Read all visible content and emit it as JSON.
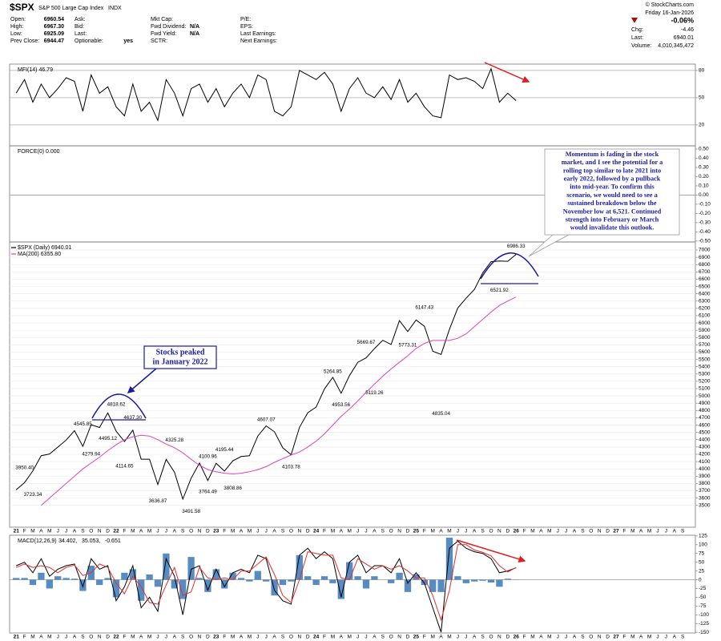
{
  "header": {
    "symbol": "$SPX",
    "name": "S&P 500 Large Cap Index",
    "exchange": "INDX",
    "columns": [
      [
        {
          "label": "Open:",
          "value": "6960.54"
        },
        {
          "label": "High:",
          "value": "6967.30"
        },
        {
          "label": "Low:",
          "value": "6925.09"
        },
        {
          "label": "Prev Close:",
          "value": "6944.47"
        }
      ],
      [
        {
          "label": "Ask:"
        },
        {
          "label": "Bid:"
        },
        {
          "label": "Last:"
        },
        {
          "label": "Optionable:",
          "value": "yes"
        }
      ],
      [
        {
          "label": "Mkt Cap:"
        },
        {
          "label": "Fwd Dividend:",
          "value": "N/A"
        },
        {
          "label": "Fwd Yield:",
          "value": "N/A"
        },
        {
          "label": "SCTR:"
        }
      ],
      [
        {
          "label": "P/E:"
        },
        {
          "label": "EPS:"
        },
        {
          "label": "Last Earnings:"
        },
        {
          "label": "Next Earnings:"
        }
      ]
    ],
    "date": "Friday  16-Jan-2026",
    "change_pct": "-0.06%",
    "details": [
      {
        "label": "Chg:",
        "value": "-4.46"
      },
      {
        "label": "Last:",
        "value": "6940.01"
      },
      {
        "label": "Volume:",
        "value": "4,010,345,472"
      }
    ],
    "credit": "© StockCharts.com"
  },
  "time_axis": {
    "start": "2021-01",
    "labels": [
      "21",
      "F",
      "M",
      "A",
      "M",
      "J",
      "J",
      "A",
      "S",
      "O",
      "N",
      "D",
      "22",
      "F",
      "M",
      "A",
      "M",
      "J",
      "J",
      "A",
      "S",
      "O",
      "N",
      "D",
      "23",
      "F",
      "M",
      "A",
      "M",
      "J",
      "J",
      "A",
      "S",
      "O",
      "N",
      "D",
      "24",
      "F",
      "M",
      "A",
      "M",
      "J",
      "J",
      "A",
      "S",
      "O",
      "N",
      "D",
      "25",
      "F",
      "M",
      "A",
      "M",
      "J",
      "J",
      "A",
      "S",
      "O",
      "N",
      "D",
      "26",
      "F",
      "M",
      "A",
      "M",
      "J",
      "J",
      "A",
      "S",
      "O",
      "N",
      "D",
      "27",
      "F",
      "M",
      "A",
      "M",
      "J",
      "J",
      "A",
      "S"
    ]
  },
  "notes": [
    {
      "lines": [
        "Stocks peaked",
        "in January 2022"
      ]
    },
    {
      "lines": [
        "Momentum is fading in the stock",
        "market, and I see the potential for a",
        "rolling top similar to late 2021 into",
        "early 2022, followed by a pullback",
        "into mid-year. To confirm this",
        "scenario, we would need to see a",
        "sustained breakdown below the",
        "November low at 6,521. Continued",
        "strength into February or March",
        "would invalidate this outlook."
      ]
    }
  ],
  "chart_data": [
    {
      "type": "line",
      "title": "MFI(14) 46.79",
      "ylim": [
        -3,
        87
      ],
      "yticks": [
        20,
        50,
        80
      ],
      "grid": true,
      "grid_color": "#999999",
      "x": [
        "2021-01",
        "2021-02",
        "2021-03",
        "2021-04",
        "2021-05",
        "2021-06",
        "2021-07",
        "2021-08",
        "2021-09",
        "2021-10",
        "2021-11",
        "2021-12",
        "2022-01",
        "2022-02",
        "2022-03",
        "2022-04",
        "2022-05",
        "2022-06",
        "2022-07",
        "2022-08",
        "2022-09",
        "2022-10",
        "2022-11",
        "2022-12",
        "2023-01",
        "2023-02",
        "2023-03",
        "2023-04",
        "2023-05",
        "2023-06",
        "2023-07",
        "2023-08",
        "2023-09",
        "2023-10",
        "2023-11",
        "2023-12",
        "2024-01",
        "2024-02",
        "2024-03",
        "2024-04",
        "2024-05",
        "2024-06",
        "2024-07",
        "2024-08",
        "2024-09",
        "2024-10",
        "2024-11",
        "2024-12",
        "2025-01",
        "2025-02",
        "2025-03",
        "2025-04",
        "2025-05",
        "2025-06",
        "2025-07",
        "2025-08",
        "2025-09",
        "2025-10",
        "2025-11",
        "2025-12",
        "2026-01"
      ],
      "series": [
        {
          "color": "#000000",
          "values": [
            55,
            70,
            45,
            65,
            50,
            60,
            72,
            68,
            35,
            75,
            55,
            62,
            40,
            30,
            65,
            35,
            45,
            25,
            70,
            55,
            30,
            60,
            65,
            45,
            60,
            40,
            55,
            65,
            50,
            75,
            70,
            35,
            30,
            40,
            80,
            75,
            70,
            78,
            65,
            35,
            60,
            72,
            55,
            50,
            62,
            48,
            70,
            45,
            55,
            40,
            30,
            28,
            75,
            70,
            72,
            68,
            60,
            82,
            45,
            55,
            46.79
          ]
        }
      ]
    },
    {
      "type": "line",
      "title": "FORCE(0) 0.000",
      "ylim": [
        -0.51,
        0.535
      ],
      "zero_line": true,
      "yticks": [
        {
          "value": 0.5,
          "label": "0.50"
        },
        {
          "value": 0.4,
          "label": "0.40"
        },
        {
          "value": 0.3,
          "label": "0.30"
        },
        {
          "value": 0.2,
          "label": "0.20"
        },
        {
          "value": 0.1,
          "label": "0.10"
        },
        {
          "value": 0,
          "label": "0.00"
        },
        {
          "value": -0.1,
          "label": "-0.10"
        },
        {
          "value": -0.2,
          "label": "-0.20"
        },
        {
          "value": -0.3,
          "label": "-0.30"
        },
        {
          "value": -0.4,
          "label": "-0.40"
        },
        {
          "value": -0.5,
          "label": "-0.50"
        }
      ],
      "series": []
    },
    {
      "type": "line",
      "ylim": [
        3200,
        7110
      ],
      "grid": true,
      "grid_color": "#eeeeee",
      "yticks": [
        3500,
        3600,
        3700,
        3800,
        3900,
        4000,
        4100,
        4200,
        4300,
        4400,
        4500,
        4600,
        4700,
        4800,
        4900,
        5000,
        5100,
        5200,
        5300,
        5400,
        5500,
        5600,
        5700,
        5800,
        5900,
        6000,
        6100,
        6200,
        6300,
        6400,
        6500,
        6600,
        6700,
        6800,
        6900,
        7000
      ],
      "x": [
        "2021-01",
        "2021-02",
        "2021-03",
        "2021-04",
        "2021-05",
        "2021-06",
        "2021-07",
        "2021-08",
        "2021-09",
        "2021-10",
        "2021-11",
        "2021-12",
        "2022-01",
        "2022-02",
        "2022-03",
        "2022-04",
        "2022-05",
        "2022-06",
        "2022-07",
        "2022-08",
        "2022-09",
        "2022-10",
        "2022-11",
        "2022-12",
        "2023-01",
        "2023-02",
        "2023-03",
        "2023-04",
        "2023-05",
        "2023-06",
        "2023-07",
        "2023-08",
        "2023-09",
        "2023-10",
        "2023-11",
        "2023-12",
        "2024-01",
        "2024-02",
        "2024-03",
        "2024-04",
        "2024-05",
        "2024-06",
        "2024-07",
        "2024-08",
        "2024-09",
        "2024-10",
        "2024-11",
        "2024-12",
        "2025-01",
        "2025-02",
        "2025-03",
        "2025-04",
        "2025-05",
        "2025-06",
        "2025-07",
        "2025-08",
        "2025-09",
        "2025-10",
        "2025-11",
        "2025-12",
        "2026-01"
      ],
      "series": [
        {
          "name": "$SPX (Daily) 6940.01",
          "color": "#000000",
          "values": [
            3714,
            3811,
            3973,
            4181,
            4204,
            4298,
            4395,
            4523,
            4308,
            4605,
            4567,
            4766,
            4516,
            4374,
            4530,
            4132,
            4132,
            3785,
            4130,
            3955,
            3586,
            3872,
            4080,
            3840,
            4077,
            3970,
            4109,
            4169,
            4180,
            4450,
            4589,
            4508,
            4288,
            4194,
            4568,
            4770,
            4846,
            5096,
            5254,
            5036,
            5278,
            5460,
            5522,
            5648,
            5762,
            5705,
            6032,
            5882,
            6041,
            5955,
            5612,
            5569,
            5912,
            6205,
            6339,
            6460,
            6688,
            6840,
            6849,
            6845,
            6940.01
          ]
        },
        {
          "name": "MA(200) 6355.80",
          "color": "#e040c0",
          "values": [
            null,
            null,
            null,
            3500,
            3600,
            3700,
            3800,
            3900,
            4000,
            4080,
            4160,
            4250,
            4330,
            4400,
            4440,
            4460,
            4450,
            4400,
            4340,
            4290,
            4220,
            4130,
            4050,
            3990,
            3960,
            3940,
            3930,
            3940,
            3960,
            3990,
            4030,
            4090,
            4140,
            4190,
            4230,
            4300,
            4380,
            4480,
            4600,
            4720,
            4820,
            4930,
            5050,
            5160,
            5270,
            5370,
            5460,
            5550,
            5650,
            5720,
            5760,
            5760,
            5760,
            5790,
            5850,
            5950,
            6050,
            6150,
            6240,
            6300,
            6355.8
          ]
        }
      ],
      "annotations": [
        {
          "value": 3950.4,
          "label": "3950.40",
          "date": "2021-02",
          "pos": "above"
        },
        {
          "value": 3723.34,
          "label": "3723.34",
          "date": "2021-03",
          "pos": "below"
        },
        {
          "value": 4545.85,
          "label": "4545.85",
          "date": "2021-09",
          "pos": "above"
        },
        {
          "value": 4279.94,
          "label": "4279.94",
          "date": "2021-10",
          "pos": "below"
        },
        {
          "value": 4495.12,
          "label": "4495.12",
          "date": "2021-12",
          "pos": "below"
        },
        {
          "value": 4818.62,
          "label": "4818.62",
          "date": "2022-01",
          "pos": "above"
        },
        {
          "value": 4114.65,
          "label": "4114.65",
          "date": "2022-02",
          "pos": "below"
        },
        {
          "value": 4637.3,
          "label": "4637.30",
          "date": "2022-03",
          "pos": "above"
        },
        {
          "value": 3636.87,
          "label": "3636.87",
          "date": "2022-06",
          "pos": "below"
        },
        {
          "value": 4325.28,
          "label": "4325.28",
          "date": "2022-08",
          "pos": "above"
        },
        {
          "value": 3491.58,
          "label": "3491.58",
          "date": "2022-10",
          "pos": "below"
        },
        {
          "value": 4100.96,
          "label": "4100.96",
          "date": "2022-12",
          "pos": "above"
        },
        {
          "value": 3764.49,
          "label": "3764.49",
          "date": "2022-12",
          "pos": "below"
        },
        {
          "value": 4195.44,
          "label": "4195.44",
          "date": "2023-02",
          "pos": "above"
        },
        {
          "value": 3808.86,
          "label": "3808.86",
          "date": "2023-03",
          "pos": "below"
        },
        {
          "value": 4607.07,
          "label": "4607.07",
          "date": "2023-07",
          "pos": "above"
        },
        {
          "value": 4103.78,
          "label": "4103.78",
          "date": "2023-10",
          "pos": "below"
        },
        {
          "value": 5264.85,
          "label": "5264.85",
          "date": "2024-03",
          "pos": "above"
        },
        {
          "value": 4953.56,
          "label": "4953.56",
          "date": "2024-04",
          "pos": "below"
        },
        {
          "value": 5669.67,
          "label": "5669.67",
          "date": "2024-07",
          "pos": "above"
        },
        {
          "value": 5119.26,
          "label": "5119.26",
          "date": "2024-08",
          "pos": "below"
        },
        {
          "value": 5773.31,
          "label": "5773.31",
          "date": "2024-12",
          "pos": "below"
        },
        {
          "value": 6147.43,
          "label": "6147.43",
          "date": "2025-02",
          "pos": "above"
        },
        {
          "value": 4835.04,
          "label": "4835.04",
          "date": "2025-04",
          "pos": "below"
        },
        {
          "value": 6521.92,
          "label": "6521.92",
          "date": "2025-11",
          "pos": "below"
        },
        {
          "value": 6986.33,
          "label": "6986.33",
          "date": "2026-01",
          "pos": "above"
        }
      ]
    },
    {
      "type": "line",
      "title": "MACD(12,26,9)",
      "ylim": [
        -152,
        127
      ],
      "zero_line": true,
      "yticks": [
        125,
        100,
        75,
        50,
        25,
        0,
        -25,
        -50,
        -75,
        -100,
        -125,
        -150
      ],
      "legend_values": [
        {
          "label": "34.402,",
          "color": "#000000"
        },
        {
          "label": "35.053,",
          "color": "#e03030"
        },
        {
          "label": "-0.651",
          "color": "#3a78b8"
        }
      ],
      "x": [
        "2021-01",
        "2021-02",
        "2021-03",
        "2021-04",
        "2021-05",
        "2021-06",
        "2021-07",
        "2021-08",
        "2021-09",
        "2021-10",
        "2021-11",
        "2021-12",
        "2022-01",
        "2022-02",
        "2022-03",
        "2022-04",
        "2022-05",
        "2022-06",
        "2022-07",
        "2022-08",
        "2022-09",
        "2022-10",
        "2022-11",
        "2022-12",
        "2023-01",
        "2023-02",
        "2023-03",
        "2023-04",
        "2023-05",
        "2023-06",
        "2023-07",
        "2023-08",
        "2023-09",
        "2023-10",
        "2023-11",
        "2023-12",
        "2024-01",
        "2024-02",
        "2024-03",
        "2024-04",
        "2024-05",
        "2024-06",
        "2024-07",
        "2024-08",
        "2024-09",
        "2024-10",
        "2024-11",
        "2024-12",
        "2025-01",
        "2025-02",
        "2025-03",
        "2025-04",
        "2025-05",
        "2025-06",
        "2025-07",
        "2025-08",
        "2025-09",
        "2025-10",
        "2025-11",
        "2025-12",
        "2026-01"
      ],
      "series": [
        {
          "style": "bar",
          "color": "#3a78b8",
          "values": [
            5,
            5,
            -15,
            20,
            -25,
            10,
            5,
            3,
            -32,
            40,
            -15,
            5,
            -50,
            20,
            30,
            -60,
            15,
            -20,
            75,
            -25,
            -55,
            65,
            5,
            -35,
            30,
            -25,
            20,
            5,
            -5,
            25,
            -5,
            -45,
            -15,
            -5,
            70,
            10,
            -15,
            10,
            -10,
            -55,
            50,
            10,
            -25,
            10,
            0,
            -10,
            20,
            -35,
            15,
            -15,
            -35,
            -35,
            120,
            10,
            -10,
            -5,
            -3,
            -8,
            -20,
            3,
            -0.651
          ]
        },
        {
          "color": "#000000",
          "values": [
            40,
            50,
            20,
            60,
            10,
            30,
            40,
            45,
            -20,
            60,
            30,
            40,
            -60,
            -20,
            40,
            -80,
            -50,
            -90,
            60,
            10,
            -100,
            30,
            40,
            -30,
            30,
            -20,
            20,
            30,
            20,
            70,
            60,
            -30,
            -60,
            -70,
            70,
            90,
            60,
            80,
            60,
            -50,
            50,
            70,
            20,
            40,
            40,
            20,
            60,
            -10,
            20,
            -10,
            -80,
            -150,
            90,
            110,
            90,
            80,
            75,
            60,
            20,
            25,
            34.402
          ]
        },
        {
          "color": "#e03030",
          "values": [
            35,
            45,
            35,
            40,
            35,
            20,
            35,
            42,
            12,
            20,
            45,
            35,
            -10,
            -40,
            10,
            -20,
            -65,
            -70,
            -15,
            35,
            -45,
            -35,
            35,
            5,
            0,
            5,
            0,
            25,
            25,
            45,
            65,
            15,
            -45,
            -65,
            0,
            80,
            75,
            70,
            70,
            5,
            0,
            60,
            45,
            30,
            40,
            30,
            40,
            25,
            5,
            5,
            -45,
            -115,
            -30,
            100,
            100,
            85,
            78,
            68,
            40,
            22,
            35.053
          ]
        }
      ]
    }
  ]
}
